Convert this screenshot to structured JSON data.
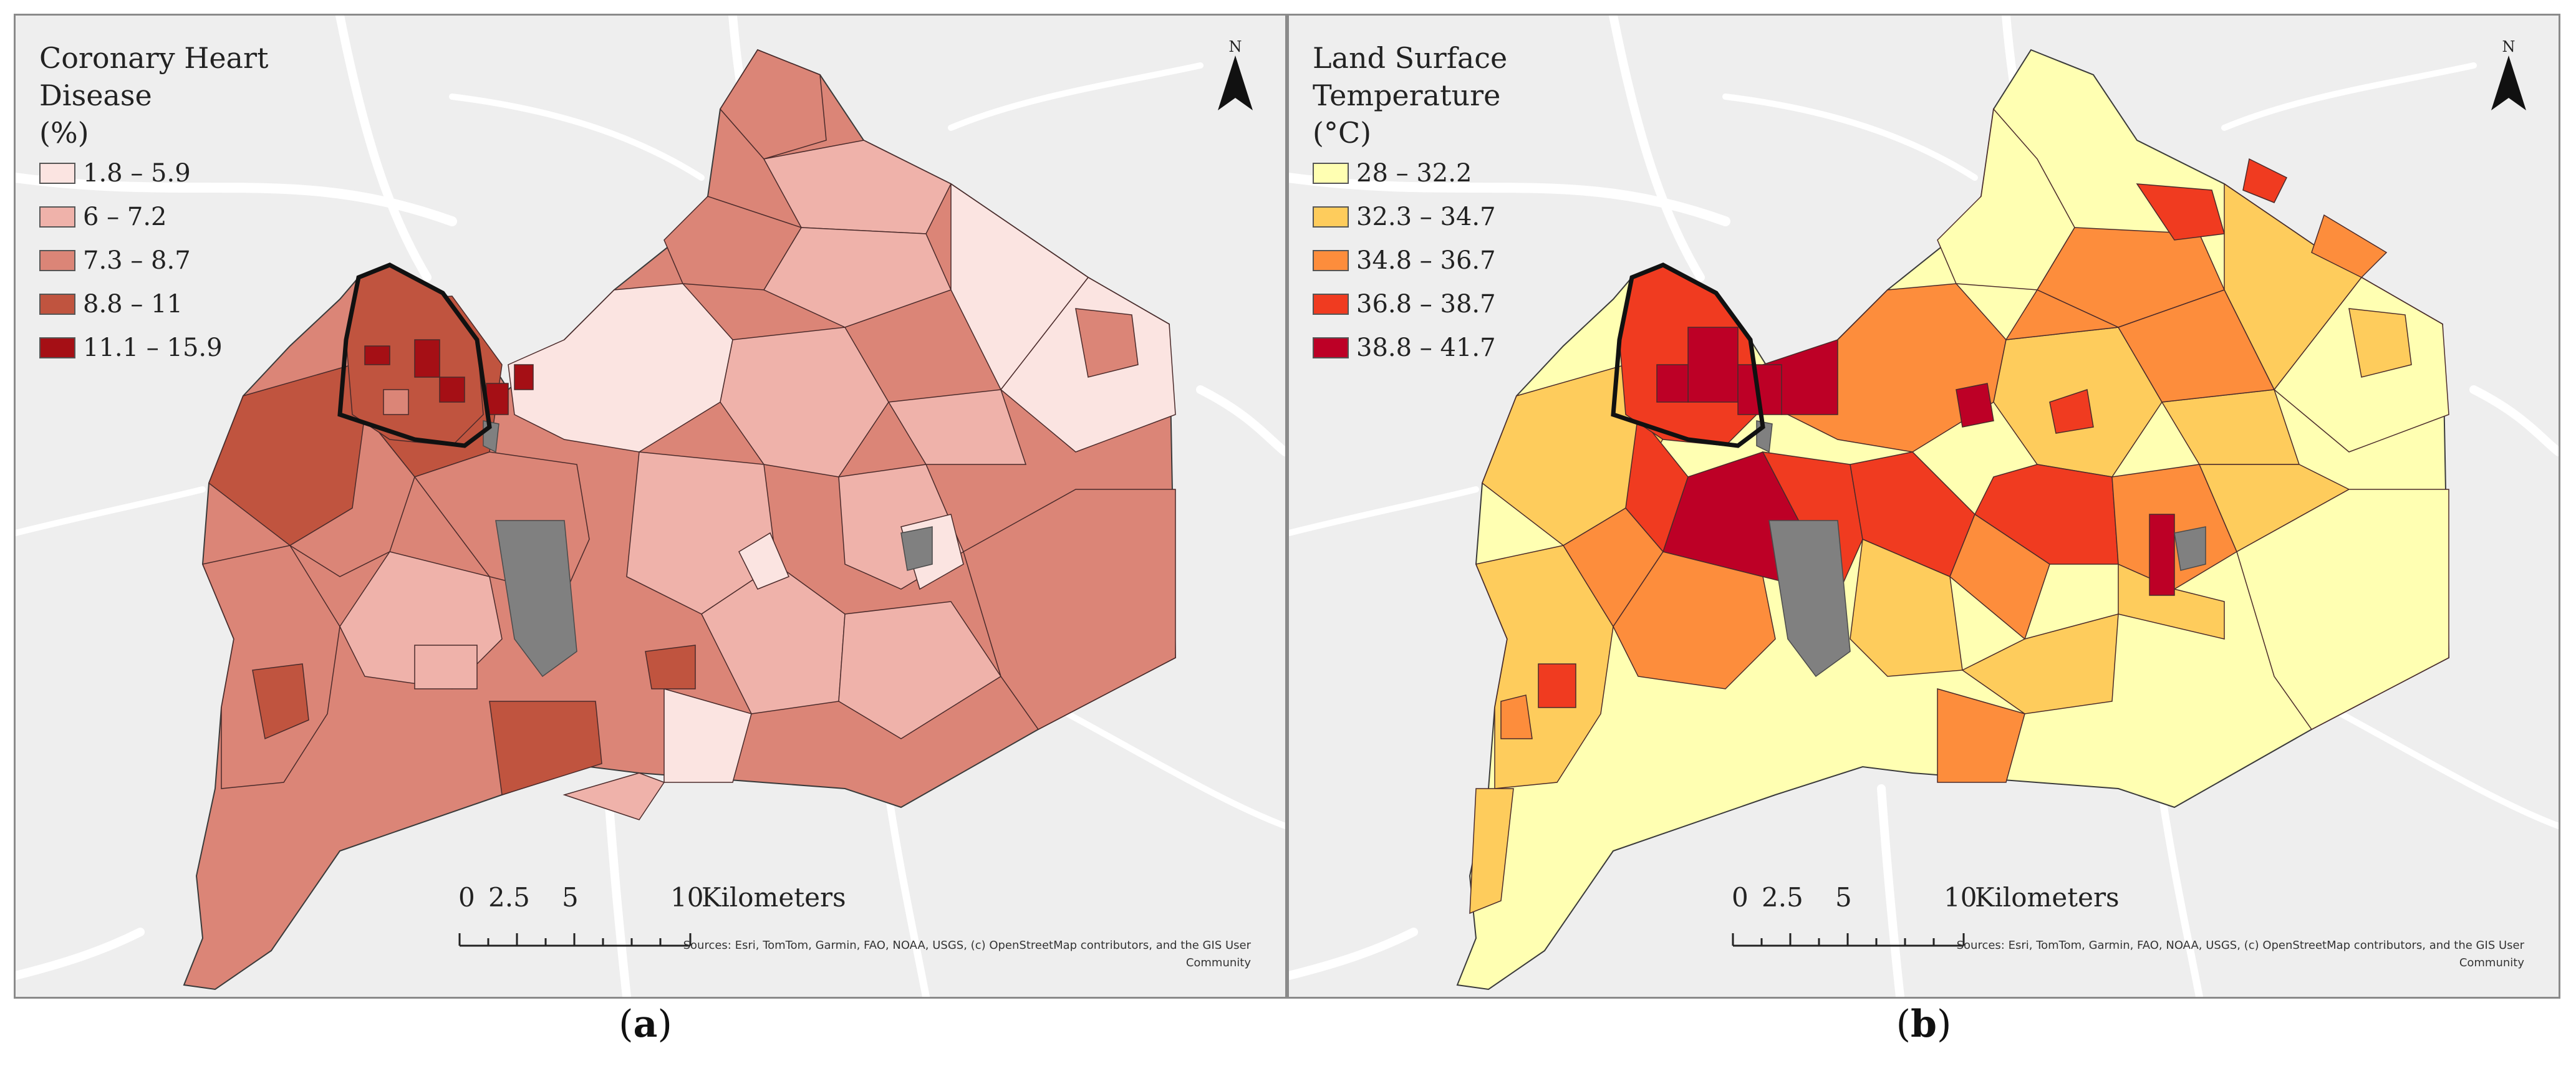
{
  "panel_a": {
    "legend_title_1": "Coronary Heart Disease",
    "legend_title_2": "(%)",
    "classes": [
      {
        "label": "1.8 – 5.9",
        "color": "#fbe4e1"
      },
      {
        "label": "6 – 7.2",
        "color": "#efb2aa"
      },
      {
        "label": "7.3 – 8.7",
        "color": "#db8577"
      },
      {
        "label": "8.8 – 11",
        "color": "#c0543f"
      },
      {
        "label": "11.1 – 15.9",
        "color": "#a50f15"
      }
    ],
    "north_label": "N",
    "scale_labels": [
      "0",
      "2.5",
      "5",
      "10"
    ],
    "scale_unit": "Kilometers",
    "sources_1": "Sources:  Esri, TomTom, Garmin, FAO, NOAA, USGS, (c) OpenStreetMap contributors, and the GIS User",
    "sources_2": "Community",
    "caption_letter": "a"
  },
  "panel_b": {
    "legend_title_1": "Land Surface Temperature",
    "legend_title_2": "(°C)",
    "classes": [
      {
        "label": "28 – 32.2",
        "color": "#ffffb2"
      },
      {
        "label": "32.3 – 34.7",
        "color": "#fecc5c"
      },
      {
        "label": "34.8 – 36.7",
        "color": "#fd8d3c"
      },
      {
        "label": "36.8 – 38.7",
        "color": "#f03b20"
      },
      {
        "label": "38.8 – 41.7",
        "color": "#bd0026"
      }
    ],
    "north_label": "N",
    "scale_labels": [
      "0",
      "2.5",
      "5",
      "10"
    ],
    "scale_unit": "Kilometers",
    "sources_1": "Sources:  Esri, TomTom, Garmin, FAO, NOAA, USGS, (c) OpenStreetMap contributors, and the GIS User",
    "sources_2": "Community",
    "caption_letter": "b"
  },
  "colors": {
    "basemap": "#eeeeee",
    "roads": "#ffffff",
    "no_data": "#808080",
    "downtown_outline": "#111111"
  }
}
